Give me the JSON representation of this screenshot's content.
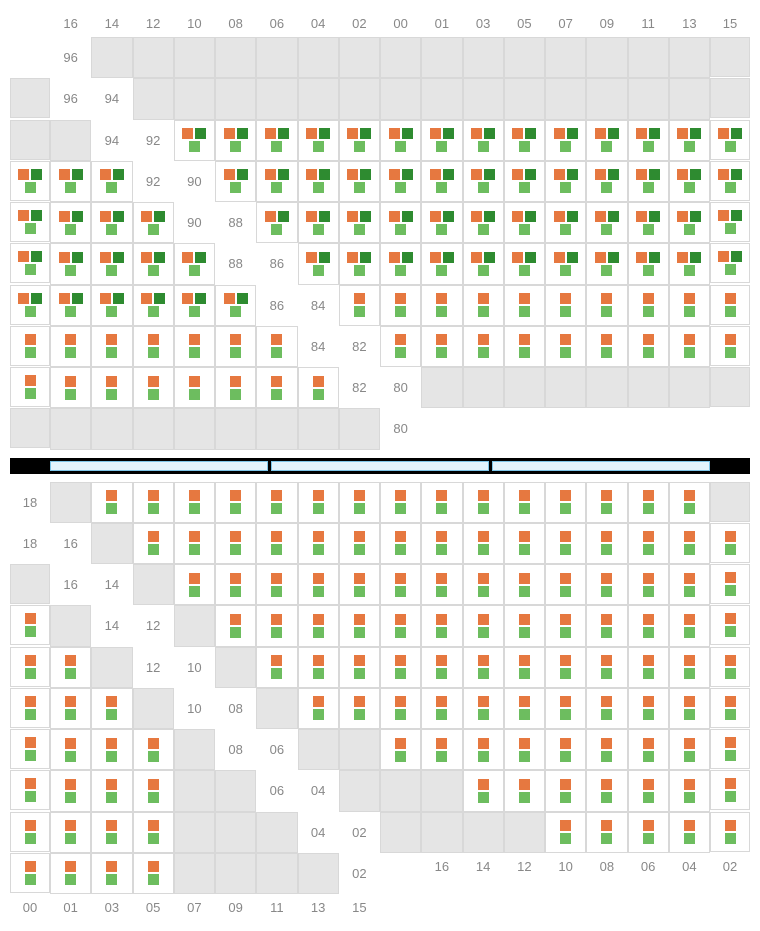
{
  "colors": {
    "orange": "#e67840",
    "lightGreen": "#6dbd5f",
    "darkGreen": "#2e8b30",
    "emptyCell": "#e5e5e5",
    "availableCell": "#ffffff",
    "gridBorder": "#d8d8d8",
    "labelText": "#888888",
    "dividerBg": "#000000",
    "dividerSegBg": "#e3f3fc",
    "dividerSegBorder": "#7ec5e8"
  },
  "columns": [
    "16",
    "14",
    "12",
    "10",
    "08",
    "06",
    "04",
    "02",
    "00",
    "01",
    "03",
    "05",
    "07",
    "09",
    "11",
    "13",
    "15"
  ],
  "upper": {
    "rows": [
      "96",
      "94",
      "92",
      "90",
      "88",
      "86",
      "84",
      "82",
      "80"
    ],
    "cells": {
      "96": {
        "type": "empty"
      },
      "94": {
        "type": "empty"
      },
      "92": {
        "type": "full",
        "cols": [
          "16",
          "14",
          "12",
          "10",
          "08",
          "06",
          "04",
          "02",
          "00",
          "01",
          "03",
          "05",
          "07",
          "09",
          "11",
          "13",
          "15"
        ]
      },
      "90": {
        "type": "full",
        "cols": [
          "16",
          "14",
          "12",
          "10",
          "08",
          "06",
          "04",
          "02",
          "00",
          "01",
          "03",
          "05",
          "07",
          "09",
          "11",
          "13",
          "15"
        ]
      },
      "88": {
        "type": "full",
        "cols": [
          "16",
          "14",
          "12",
          "10",
          "08",
          "06",
          "04",
          "02",
          "00",
          "01",
          "03",
          "05",
          "07",
          "09",
          "11",
          "13",
          "15"
        ]
      },
      "86": {
        "type": "full",
        "cols": [
          "16",
          "14",
          "12",
          "10",
          "08",
          "06",
          "04",
          "02",
          "00",
          "01",
          "03",
          "05",
          "07",
          "09",
          "11",
          "13",
          "15"
        ]
      },
      "84": {
        "type": "half",
        "cols": [
          "16",
          "14",
          "12",
          "10",
          "08",
          "06",
          "04",
          "02",
          "00",
          "01",
          "03",
          "05",
          "07",
          "09",
          "11",
          "13",
          "15"
        ]
      },
      "82": {
        "type": "half",
        "cols": [
          "16",
          "14",
          "12",
          "10",
          "08",
          "06",
          "04",
          "02",
          "00",
          "01",
          "03",
          "05",
          "07",
          "09",
          "11",
          "13",
          "15"
        ]
      },
      "80": {
        "type": "empty"
      }
    }
  },
  "lower": {
    "rows": [
      "18",
      "16",
      "14",
      "12",
      "10",
      "08",
      "06",
      "04",
      "02"
    ],
    "cells": {
      "18": {
        "type": "half",
        "cols": [
          "14",
          "12",
          "10",
          "08",
          "06",
          "04",
          "02",
          "00",
          "01",
          "03",
          "05",
          "07",
          "09",
          "11",
          "13"
        ]
      },
      "16": {
        "type": "half",
        "cols": [
          "14",
          "12",
          "10",
          "08",
          "06",
          "04",
          "02",
          "00",
          "01",
          "03",
          "05",
          "07",
          "09",
          "11",
          "13"
        ]
      },
      "14": {
        "type": "half",
        "cols": [
          "14",
          "12",
          "10",
          "08",
          "06",
          "04",
          "02",
          "00",
          "01",
          "03",
          "05",
          "07",
          "09",
          "11",
          "13"
        ]
      },
      "12": {
        "type": "half",
        "cols": [
          "14",
          "12",
          "10",
          "08",
          "06",
          "04",
          "02",
          "00",
          "01",
          "03",
          "05",
          "07",
          "09",
          "11",
          "13"
        ]
      },
      "10": {
        "type": "half",
        "cols": [
          "14",
          "12",
          "10",
          "08",
          "06",
          "04",
          "02",
          "00",
          "01",
          "03",
          "05",
          "07",
          "09",
          "11",
          "13"
        ]
      },
      "08": {
        "type": "half",
        "cols": [
          "14",
          "12",
          "10",
          "08",
          "06",
          "04",
          "02",
          "00",
          "01",
          "03",
          "05",
          "07",
          "09",
          "11",
          "13"
        ]
      },
      "06": {
        "type": "half",
        "cols": [
          "12",
          "10",
          "08",
          "06",
          "04",
          "02",
          "00",
          "01",
          "03",
          "05",
          "07",
          "09",
          "11"
        ]
      },
      "04": {
        "type": "half",
        "cols": [
          "10",
          "08",
          "06",
          "04",
          "02",
          "00",
          "01",
          "03",
          "05",
          "07",
          "09"
        ]
      },
      "02": {
        "type": "half",
        "cols": [
          "08",
          "06",
          "04",
          "02",
          "00",
          "01",
          "03",
          "05",
          "07"
        ]
      }
    }
  },
  "dividerSegments": 3,
  "markerStyle": {
    "size": 11,
    "gap": 2
  }
}
